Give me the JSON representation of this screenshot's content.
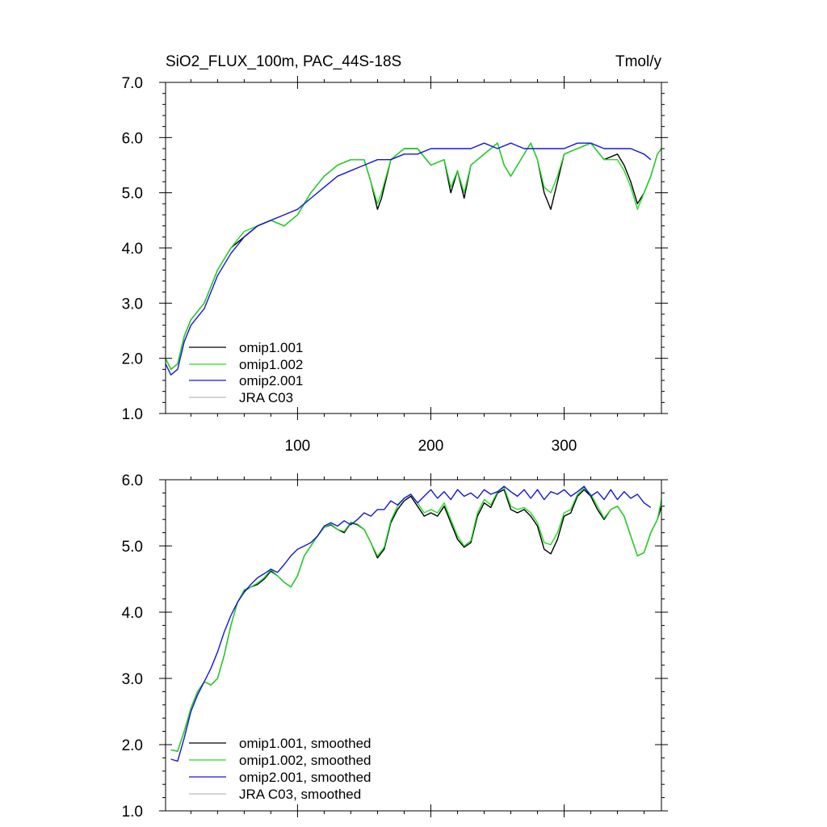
{
  "figure": {
    "title": "SiO2_FLUX_100m, PAC_44S-18S",
    "units": "Tmol/y"
  },
  "colors": {
    "omip1_001": "#000000",
    "omip1_002": "#22dd22",
    "omip2_001": "#1515dd",
    "jra_c03": "#bbbbbb"
  },
  "chart_data": [
    {
      "type": "line",
      "panel": "top",
      "xlim": [
        1,
        373
      ],
      "ylim": [
        1.0,
        7.0
      ],
      "x_ticks": [
        100,
        200,
        300
      ],
      "x_tick_labels": [
        "100",
        "200",
        "300"
      ],
      "y_ticks": [
        1.0,
        2.0,
        3.0,
        4.0,
        5.0,
        6.0,
        7.0
      ],
      "y_tick_labels": [
        "1.0",
        "2.0",
        "3.0",
        "4.0",
        "5.0",
        "6.0",
        "7.0"
      ],
      "grid": false,
      "legend_position": "lower-left",
      "series": [
        {
          "name": "omip1.001",
          "color_key": "omip1_001",
          "x": [
            1,
            5,
            10,
            15,
            20,
            30,
            40,
            50,
            60,
            70,
            80,
            90,
            100,
            110,
            120,
            130,
            140,
            150,
            155,
            160,
            163,
            170,
            180,
            190,
            200,
            210,
            215,
            220,
            225,
            230,
            240,
            250,
            255,
            260,
            270,
            275,
            280,
            285,
            290,
            295,
            300,
            310,
            320,
            330,
            340,
            345,
            350,
            355,
            360,
            365,
            370,
            373
          ],
          "y": [
            2.0,
            1.8,
            1.9,
            2.4,
            2.7,
            3.0,
            3.6,
            4.0,
            4.2,
            4.4,
            4.5,
            4.4,
            4.6,
            5.0,
            5.3,
            5.5,
            5.6,
            5.6,
            5.2,
            4.7,
            4.9,
            5.6,
            5.8,
            5.8,
            5.5,
            5.6,
            5.0,
            5.4,
            4.9,
            5.5,
            5.7,
            5.9,
            5.5,
            5.3,
            5.7,
            5.9,
            5.6,
            5.0,
            4.7,
            5.2,
            5.7,
            5.8,
            5.9,
            5.6,
            5.7,
            5.5,
            5.2,
            4.8,
            5.0,
            5.3,
            5.7,
            5.8
          ]
        },
        {
          "name": "omip1.002",
          "color_key": "omip1_002",
          "x": [
            1,
            5,
            10,
            15,
            20,
            30,
            40,
            50,
            60,
            70,
            80,
            90,
            100,
            110,
            120,
            130,
            140,
            150,
            155,
            160,
            163,
            170,
            180,
            190,
            200,
            210,
            215,
            220,
            225,
            230,
            240,
            250,
            255,
            260,
            270,
            275,
            280,
            285,
            290,
            295,
            300,
            310,
            320,
            330,
            340,
            345,
            350,
            355,
            360,
            365,
            370,
            373
          ],
          "y": [
            2.0,
            1.8,
            1.9,
            2.4,
            2.7,
            3.0,
            3.6,
            4.0,
            4.3,
            4.4,
            4.5,
            4.4,
            4.6,
            5.0,
            5.3,
            5.5,
            5.6,
            5.6,
            5.2,
            4.8,
            5.0,
            5.6,
            5.8,
            5.8,
            5.5,
            5.6,
            5.1,
            5.4,
            5.0,
            5.5,
            5.7,
            5.9,
            5.5,
            5.3,
            5.7,
            5.9,
            5.6,
            5.1,
            5.0,
            5.3,
            5.7,
            5.8,
            5.9,
            5.6,
            5.6,
            5.4,
            5.1,
            4.7,
            5.0,
            5.3,
            5.7,
            5.8
          ]
        },
        {
          "name": "omip2.001",
          "color_key": "omip2_001",
          "x": [
            1,
            5,
            10,
            15,
            20,
            30,
            40,
            50,
            60,
            70,
            80,
            90,
            100,
            110,
            120,
            130,
            140,
            150,
            160,
            170,
            180,
            190,
            200,
            210,
            220,
            230,
            240,
            250,
            260,
            270,
            280,
            290,
            300,
            310,
            320,
            330,
            340,
            350,
            360,
            365
          ],
          "y": [
            1.9,
            1.7,
            1.8,
            2.3,
            2.6,
            2.9,
            3.5,
            3.9,
            4.2,
            4.4,
            4.5,
            4.6,
            4.7,
            4.9,
            5.1,
            5.3,
            5.4,
            5.5,
            5.6,
            5.6,
            5.7,
            5.7,
            5.8,
            5.8,
            5.8,
            5.8,
            5.9,
            5.8,
            5.9,
            5.8,
            5.8,
            5.8,
            5.8,
            5.9,
            5.9,
            5.8,
            5.8,
            5.8,
            5.7,
            5.6
          ]
        },
        {
          "name": "JRA C03",
          "color_key": "jra_c03",
          "x": [],
          "y": []
        }
      ]
    },
    {
      "type": "line",
      "panel": "bottom",
      "xlim": [
        1,
        373
      ],
      "ylim": [
        1.0,
        6.0
      ],
      "x_ticks": [
        100,
        200,
        300
      ],
      "x_tick_labels": [],
      "y_ticks": [
        1.0,
        2.0,
        3.0,
        4.0,
        5.0,
        6.0
      ],
      "y_tick_labels": [
        "1.0",
        "2.0",
        "3.0",
        "4.0",
        "5.0",
        "6.0"
      ],
      "grid": false,
      "legend_position": "lower-left",
      "series": [
        {
          "name": "omip1.001, smoothed",
          "color_key": "omip1_001",
          "x": [
            5,
            10,
            15,
            20,
            25,
            30,
            35,
            40,
            45,
            50,
            55,
            60,
            65,
            70,
            75,
            80,
            85,
            90,
            95,
            100,
            105,
            110,
            115,
            120,
            125,
            130,
            135,
            140,
            145,
            150,
            155,
            160,
            165,
            170,
            175,
            180,
            185,
            190,
            195,
            200,
            205,
            210,
            215,
            220,
            225,
            230,
            235,
            240,
            245,
            250,
            255,
            260,
            265,
            270,
            275,
            280,
            285,
            290,
            295,
            300,
            305,
            310,
            315,
            320,
            325,
            330,
            335,
            340,
            345,
            350,
            355,
            360,
            365,
            370,
            373
          ],
          "y": [
            1.92,
            1.9,
            2.2,
            2.55,
            2.8,
            2.95,
            2.9,
            3.0,
            3.35,
            3.8,
            4.15,
            4.32,
            4.38,
            4.42,
            4.5,
            4.62,
            4.55,
            4.45,
            4.38,
            4.55,
            4.85,
            5.0,
            5.15,
            5.28,
            5.32,
            5.25,
            5.2,
            5.35,
            5.32,
            5.25,
            5.05,
            4.82,
            4.95,
            5.35,
            5.55,
            5.68,
            5.75,
            5.6,
            5.45,
            5.5,
            5.45,
            5.6,
            5.35,
            5.1,
            4.98,
            5.05,
            5.45,
            5.65,
            5.58,
            5.8,
            5.85,
            5.55,
            5.5,
            5.55,
            5.45,
            5.3,
            4.95,
            4.88,
            5.1,
            5.45,
            5.5,
            5.75,
            5.85,
            5.75,
            5.55,
            5.4,
            5.55,
            5.6,
            5.45,
            5.15,
            4.85,
            4.9,
            5.2,
            5.4,
            5.6
          ]
        },
        {
          "name": "omip1.002, smoothed",
          "color_key": "omip1_002",
          "x": [
            5,
            10,
            15,
            20,
            25,
            30,
            35,
            40,
            45,
            50,
            55,
            60,
            65,
            70,
            75,
            80,
            85,
            90,
            95,
            100,
            105,
            110,
            115,
            120,
            125,
            130,
            135,
            140,
            145,
            150,
            155,
            160,
            165,
            170,
            175,
            180,
            185,
            190,
            195,
            200,
            205,
            210,
            215,
            220,
            225,
            230,
            235,
            240,
            245,
            250,
            255,
            260,
            265,
            270,
            275,
            280,
            285,
            290,
            295,
            300,
            305,
            310,
            315,
            320,
            325,
            330,
            335,
            340,
            345,
            350,
            355,
            360,
            365,
            370,
            373
          ],
          "y": [
            1.92,
            1.9,
            2.2,
            2.55,
            2.8,
            2.95,
            2.9,
            3.0,
            3.35,
            3.8,
            4.15,
            4.34,
            4.38,
            4.44,
            4.52,
            4.64,
            4.55,
            4.45,
            4.38,
            4.55,
            4.85,
            5.0,
            5.15,
            5.28,
            5.33,
            5.25,
            5.22,
            5.36,
            5.33,
            5.25,
            5.05,
            4.85,
            4.98,
            5.38,
            5.6,
            5.72,
            5.78,
            5.65,
            5.5,
            5.55,
            5.5,
            5.65,
            5.4,
            5.15,
            5.0,
            5.08,
            5.5,
            5.7,
            5.62,
            5.82,
            5.88,
            5.6,
            5.55,
            5.58,
            5.5,
            5.35,
            5.05,
            5.02,
            5.2,
            5.5,
            5.55,
            5.78,
            5.88,
            5.78,
            5.6,
            5.42,
            5.55,
            5.6,
            5.45,
            5.15,
            4.85,
            4.9,
            5.2,
            5.4,
            5.7
          ]
        },
        {
          "name": "omip2.001, smoothed",
          "color_key": "omip2_001",
          "x": [
            5,
            10,
            15,
            20,
            25,
            30,
            35,
            40,
            45,
            50,
            55,
            60,
            65,
            70,
            75,
            80,
            85,
            90,
            95,
            100,
            105,
            110,
            115,
            120,
            125,
            130,
            135,
            140,
            145,
            150,
            155,
            160,
            165,
            170,
            175,
            180,
            185,
            190,
            195,
            200,
            205,
            210,
            215,
            220,
            225,
            230,
            235,
            240,
            245,
            250,
            255,
            260,
            265,
            270,
            275,
            280,
            285,
            290,
            295,
            300,
            305,
            310,
            315,
            320,
            325,
            330,
            335,
            340,
            345,
            350,
            355,
            360,
            365
          ],
          "y": [
            1.78,
            1.75,
            2.1,
            2.5,
            2.75,
            2.95,
            3.15,
            3.4,
            3.7,
            3.95,
            4.15,
            4.3,
            4.42,
            4.52,
            4.58,
            4.65,
            4.6,
            4.72,
            4.85,
            4.95,
            5.0,
            5.05,
            5.15,
            5.3,
            5.35,
            5.3,
            5.38,
            5.32,
            5.4,
            5.5,
            5.45,
            5.55,
            5.55,
            5.68,
            5.62,
            5.72,
            5.78,
            5.65,
            5.75,
            5.85,
            5.72,
            5.82,
            5.7,
            5.85,
            5.75,
            5.8,
            5.72,
            5.85,
            5.78,
            5.82,
            5.9,
            5.82,
            5.75,
            5.85,
            5.72,
            5.85,
            5.7,
            5.82,
            5.78,
            5.85,
            5.75,
            5.82,
            5.9,
            5.75,
            5.82,
            5.7,
            5.85,
            5.7,
            5.82,
            5.72,
            5.78,
            5.65,
            5.58
          ]
        },
        {
          "name": "JRA C03, smoothed",
          "color_key": "jra_c03",
          "x": [],
          "y": []
        }
      ]
    }
  ]
}
